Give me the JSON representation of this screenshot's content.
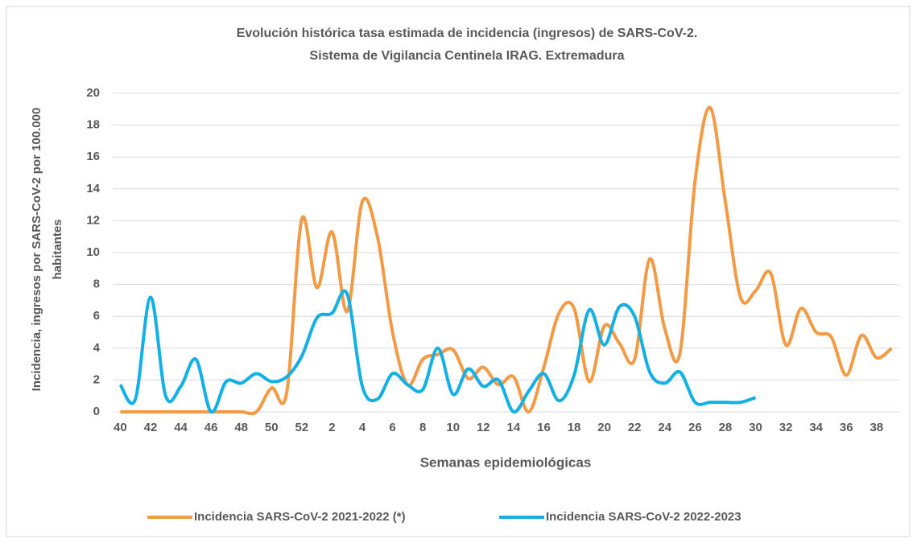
{
  "chart_data": {
    "type": "line",
    "title": [
      "Evolución histórica tasa estimada de incidencia (ingresos) de SARS-CoV-2.",
      "Sistema de Vigilancia Centinela IRAG. Extremadura"
    ],
    "x_label": "Semanas epidemiológicas",
    "y_label": [
      "Incidencia, ingresos por SARS-CoV-2 por  100.000",
      "habitantes"
    ],
    "categories": [
      "40",
      null,
      "42",
      null,
      "44",
      null,
      "46",
      null,
      "48",
      null,
      "50",
      null,
      "52",
      null,
      "2",
      null,
      "4",
      null,
      "6",
      null,
      "8",
      null,
      "10",
      null,
      "12",
      null,
      "14",
      null,
      "16",
      null,
      "18",
      null,
      "20",
      null,
      "22",
      null,
      "24",
      null,
      "26",
      null,
      "28",
      null,
      "30",
      null,
      "32",
      null,
      "34",
      null,
      "36",
      null,
      "38",
      null
    ],
    "series": [
      {
        "name": "Incidencia SARS-CoV-2 2021-2022 (*)",
        "color": "#f39a44",
        "values": [
          0,
          0,
          0,
          0,
          0,
          0,
          0,
          0,
          0,
          0,
          1.5,
          1.2,
          12.1,
          7.8,
          11.3,
          6.3,
          13.2,
          11,
          5,
          1.7,
          3.3,
          3.6,
          3.9,
          2.1,
          2.8,
          1.7,
          2.2,
          0,
          2.8,
          6.2,
          6.5,
          1.9,
          5.4,
          4.3,
          3.3,
          9.6,
          5.2,
          3.7,
          14.5,
          19.1,
          13.2,
          7.2,
          7.6,
          8.7,
          4.2,
          6.5,
          5,
          4.7,
          2.3,
          4.8,
          3.4,
          4
        ]
      },
      {
        "name": "Incidencia SARS-CoV-2 2022-2023",
        "color": "#13b0e6",
        "values": [
          1.7,
          0.8,
          7.2,
          1,
          1.6,
          3.3,
          0,
          1.9,
          1.8,
          2.4,
          1.9,
          2.2,
          3.5,
          5.9,
          6.2,
          7.4,
          1.6,
          0.8,
          2.4,
          1.7,
          1.4,
          4,
          1.1,
          2.7,
          1.6,
          2,
          0,
          1.3,
          2.4,
          0.7,
          2.3,
          6.4,
          4.2,
          6.6,
          6,
          2.5,
          1.8,
          2.5,
          0.6,
          0.6,
          0.6,
          0.6,
          0.9,
          null,
          null,
          null,
          null,
          null,
          null,
          null,
          null,
          null
        ]
      }
    ],
    "ylim": [
      0,
      20
    ],
    "yticks": [
      0,
      2,
      4,
      6,
      8,
      10,
      12,
      14,
      16,
      18,
      20
    ],
    "grid": true,
    "legend": "bottom"
  }
}
